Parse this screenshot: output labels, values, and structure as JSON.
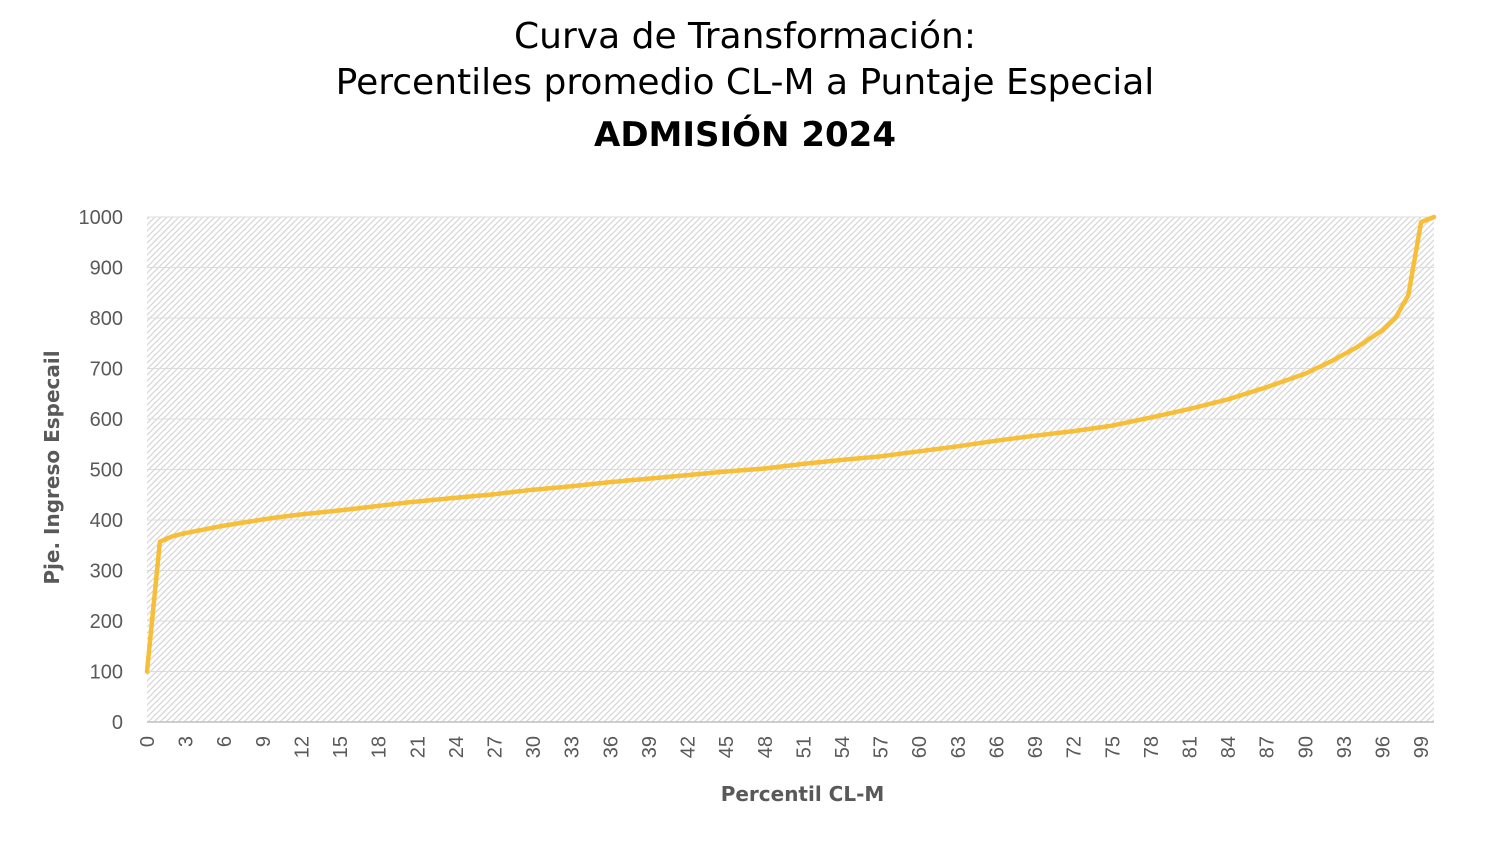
{
  "chart_data": {
    "type": "line",
    "title_line1": "Curva de Transformación:",
    "title_line2": "Percentiles promedio CL-M a Puntaje Especial",
    "subtitle": "ADMISIÓN 2024",
    "xlabel": "Percentil CL-M",
    "ylabel": "Pje. Ingreso Especail",
    "xlim": [
      0,
      100
    ],
    "ylim": [
      0,
      1000
    ],
    "yticks": [
      "0",
      "100",
      "200",
      "300",
      "400",
      "500",
      "600",
      "700",
      "800",
      "900",
      "1000"
    ],
    "xticks": [
      "0",
      "3",
      "6",
      "9",
      "12",
      "15",
      "18",
      "21",
      "24",
      "27",
      "30",
      "33",
      "36",
      "39",
      "42",
      "45",
      "48",
      "51",
      "54",
      "57",
      "60",
      "63",
      "66",
      "69",
      "72",
      "75",
      "78",
      "81",
      "84",
      "87",
      "90",
      "93",
      "96",
      "99"
    ],
    "grid": true,
    "plot_background": "hatched",
    "series": [
      {
        "color": "#F7BE38",
        "x": [
          0,
          1,
          2,
          3,
          4,
          5,
          6,
          8,
          10,
          12,
          15,
          18,
          20,
          24,
          27,
          30,
          33,
          36,
          39,
          42,
          45,
          48,
          51,
          54,
          57,
          60,
          63,
          66,
          69,
          72,
          75,
          78,
          81,
          84,
          87,
          90,
          92,
          94,
          96,
          97,
          98,
          99,
          100
        ],
        "y": [
          100,
          357,
          368,
          374,
          379,
          384,
          389,
          397,
          405,
          411,
          419,
          428,
          434,
          444,
          451,
          460,
          467,
          475,
          482,
          489,
          496,
          502,
          511,
          519,
          526,
          536,
          546,
          557,
          567,
          576,
          587,
          603,
          620,
          639,
          663,
          690,
          714,
          742,
          776,
          800,
          845,
          990,
          1000
        ]
      }
    ]
  }
}
